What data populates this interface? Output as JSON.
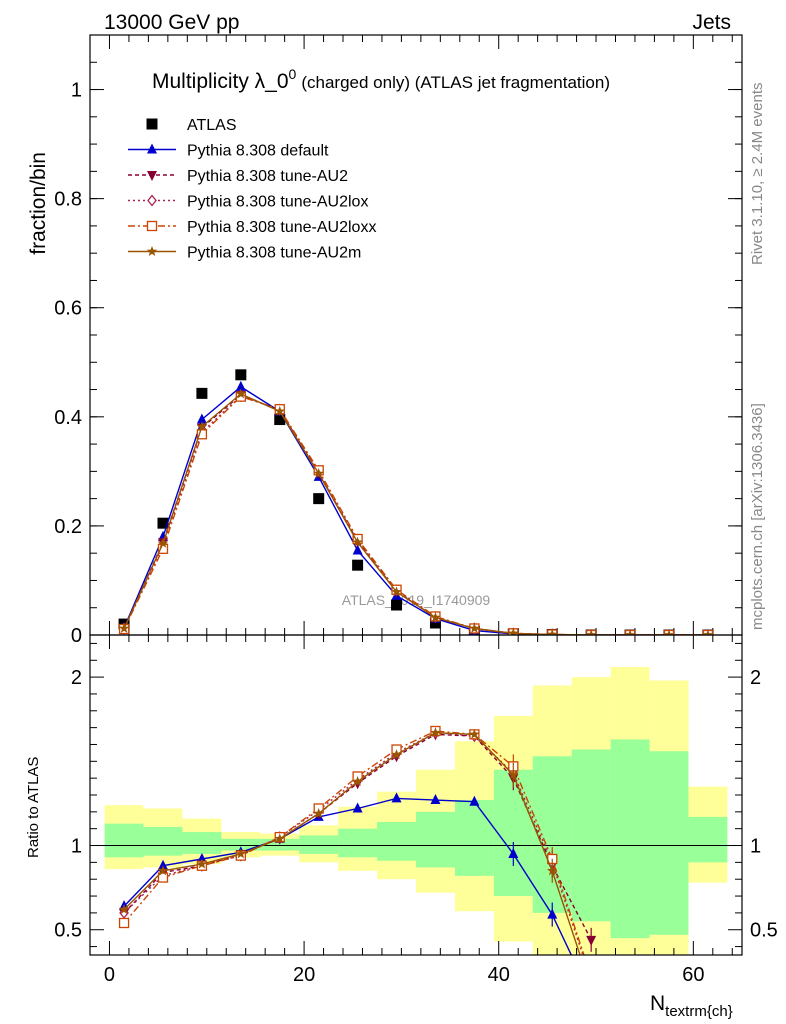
{
  "header": {
    "left": "13000 GeV pp",
    "right": "Jets",
    "side_right_top": "Rivet 3.1.10, ≥ 2.4M events",
    "side_right_bottom": "mcplots.cern.ch [arXiv:1306.3436]",
    "watermark": "ATLAS_2019_I1740909"
  },
  "chart_data": [
    {
      "id": "main",
      "type": "scatter",
      "title_main": "Multiplicity λ_0",
      "title_sup": "0",
      "title_sub": "(charged only) (ATLAS jet fragmentation)",
      "ylabel": "fraction/bin",
      "xlabel": "",
      "xlim": [
        -2,
        65
      ],
      "ylim": [
        0,
        1.1
      ],
      "yticks": [
        0,
        0.2,
        0.4,
        0.6,
        0.8,
        1
      ],
      "ytick_labels": [
        "0",
        "0.2",
        "0.4",
        "0.6",
        "0.8",
        "1"
      ],
      "x": [
        1.5,
        5.5,
        9.5,
        13.5,
        17.5,
        21.5,
        25.5,
        29.5,
        33.5,
        37.5,
        41.5,
        45.5,
        49.5,
        53.5,
        57.5,
        61.5
      ],
      "series": [
        {
          "name": "ATLAS",
          "color": "#000000",
          "marker": "square",
          "dash": "none",
          "values": [
            0.02,
            0.205,
            0.443,
            0.477,
            0.395,
            0.25,
            0.128,
            0.055,
            0.022,
            0.007,
            0.002,
            0.001,
            0.0,
            0.0,
            0.0,
            0.0
          ]
        },
        {
          "name": "Pythia 8.308 default",
          "color": "#0000cc",
          "marker": "triangle-up",
          "dash": "none",
          "values": [
            0.013,
            0.18,
            0.395,
            0.455,
            0.41,
            0.29,
            0.155,
            0.072,
            0.03,
            0.008,
            0.002,
            0.0005,
            0.0,
            0.0,
            0.0,
            0.0
          ]
        },
        {
          "name": "Pythia 8.308 tune-AU2",
          "color": "#880033",
          "marker": "triangle-down",
          "dash": "4,3",
          "values": [
            0.012,
            0.17,
            0.38,
            0.44,
            0.412,
            0.297,
            0.172,
            0.08,
            0.032,
            0.012,
            0.003,
            0.001,
            0.0,
            0.0,
            0.0,
            0.0
          ]
        },
        {
          "name": "Pythia 8.308 tune-AU2lox",
          "color": "#aa2255",
          "marker": "diamond-open",
          "dash": "2,3",
          "values": [
            0.012,
            0.165,
            0.372,
            0.438,
            0.413,
            0.3,
            0.175,
            0.082,
            0.033,
            0.012,
            0.003,
            0.001,
            0.0,
            0.0,
            0.0,
            0.0
          ]
        },
        {
          "name": "Pythia 8.308 tune-AU2loxx",
          "color": "#cc4400",
          "marker": "square-open",
          "dash": "7,3,2,3",
          "values": [
            0.011,
            0.158,
            0.368,
            0.437,
            0.414,
            0.302,
            0.176,
            0.083,
            0.034,
            0.012,
            0.003,
            0.001,
            0.0,
            0.0,
            0.0,
            0.0
          ]
        },
        {
          "name": "Pythia 8.308 tune-AU2m",
          "color": "#995500",
          "marker": "star",
          "dash": "none",
          "values": [
            0.012,
            0.168,
            0.382,
            0.442,
            0.41,
            0.296,
            0.17,
            0.079,
            0.032,
            0.012,
            0.003,
            0.001,
            0.0,
            0.0,
            0.0,
            0.0
          ]
        }
      ]
    },
    {
      "id": "ratio",
      "type": "line",
      "ylabel": "Ratio to ATLAS",
      "xlabel": "N",
      "xlabel_sub": "textrm{ch}",
      "xlim": [
        -2,
        65
      ],
      "ylim": [
        0.35,
        2.25
      ],
      "yticks": [
        0.5,
        1,
        2
      ],
      "ytick_labels": [
        "0.5",
        "1",
        "2"
      ],
      "xticks": [
        0,
        20,
        40,
        60
      ],
      "xtick_labels": [
        "0",
        "20",
        "40",
        "60"
      ],
      "bin_edges": [
        -0.5,
        3.5,
        7.5,
        11.5,
        15.5,
        19.5,
        23.5,
        27.5,
        31.5,
        35.5,
        39.5,
        43.5,
        47.5,
        51.5,
        55.5,
        59.5,
        63.5
      ],
      "band_yellow": [
        [
          0.86,
          1.24
        ],
        [
          0.87,
          1.22
        ],
        [
          0.89,
          1.16
        ],
        [
          0.93,
          1.08
        ],
        [
          0.94,
          1.07
        ],
        [
          0.9,
          1.12
        ],
        [
          0.85,
          1.23
        ],
        [
          0.8,
          1.32
        ],
        [
          0.72,
          1.45
        ],
        [
          0.61,
          1.62
        ],
        [
          0.43,
          1.77
        ],
        [
          0.32,
          1.95
        ],
        [
          0.3,
          2.0
        ],
        [
          0.3,
          2.06
        ],
        [
          0.3,
          1.98
        ],
        [
          0.78,
          1.35
        ]
      ],
      "band_green": [
        [
          0.93,
          1.13
        ],
        [
          0.94,
          1.11
        ],
        [
          0.95,
          1.08
        ],
        [
          0.97,
          1.04
        ],
        [
          0.97,
          1.04
        ],
        [
          0.95,
          1.06
        ],
        [
          0.93,
          1.1
        ],
        [
          0.91,
          1.14
        ],
        [
          0.87,
          1.2
        ],
        [
          0.82,
          1.27
        ],
        [
          0.7,
          1.45
        ],
        [
          0.6,
          1.53
        ],
        [
          0.55,
          1.57
        ],
        [
          0.45,
          1.63
        ],
        [
          0.47,
          1.56
        ],
        [
          0.9,
          1.17
        ]
      ],
      "x": [
        1.5,
        5.5,
        9.5,
        13.5,
        17.5,
        21.5,
        25.5,
        29.5,
        33.5,
        37.5,
        41.5,
        45.5,
        49.5
      ],
      "series": [
        {
          "name": "Pythia 8.308 default",
          "color": "#0000cc",
          "marker": "triangle-up",
          "dash": "none",
          "values": [
            0.64,
            0.88,
            0.92,
            0.96,
            1.04,
            1.17,
            1.22,
            1.28,
            1.27,
            1.26,
            0.95,
            0.59,
            0.1
          ]
        },
        {
          "name": "Pythia 8.308 tune-AU2",
          "color": "#880033",
          "marker": "triangle-down",
          "dash": "4,3",
          "values": [
            0.6,
            0.84,
            0.88,
            0.95,
            1.04,
            1.19,
            1.37,
            1.53,
            1.66,
            1.65,
            1.4,
            0.88,
            0.44
          ]
        },
        {
          "name": "Pythia 8.308 tune-AU2lox",
          "color": "#aa2255",
          "marker": "diamond-open",
          "dash": "2,3",
          "values": [
            0.6,
            0.82,
            0.88,
            0.94,
            1.05,
            1.21,
            1.39,
            1.55,
            1.67,
            1.65,
            1.43,
            0.9,
            0.2
          ]
        },
        {
          "name": "Pythia 8.308 tune-AU2loxx",
          "color": "#cc4400",
          "marker": "square-open",
          "dash": "7,3,2,3",
          "values": [
            0.54,
            0.81,
            0.88,
            0.94,
            1.05,
            1.22,
            1.41,
            1.57,
            1.68,
            1.66,
            1.47,
            0.92,
            0.22
          ]
        },
        {
          "name": "Pythia 8.308 tune-AU2m",
          "color": "#995500",
          "marker": "star",
          "dash": "none",
          "values": [
            0.62,
            0.85,
            0.89,
            0.95,
            1.04,
            1.19,
            1.38,
            1.54,
            1.67,
            1.66,
            1.42,
            0.85,
            0.15
          ]
        }
      ]
    }
  ]
}
